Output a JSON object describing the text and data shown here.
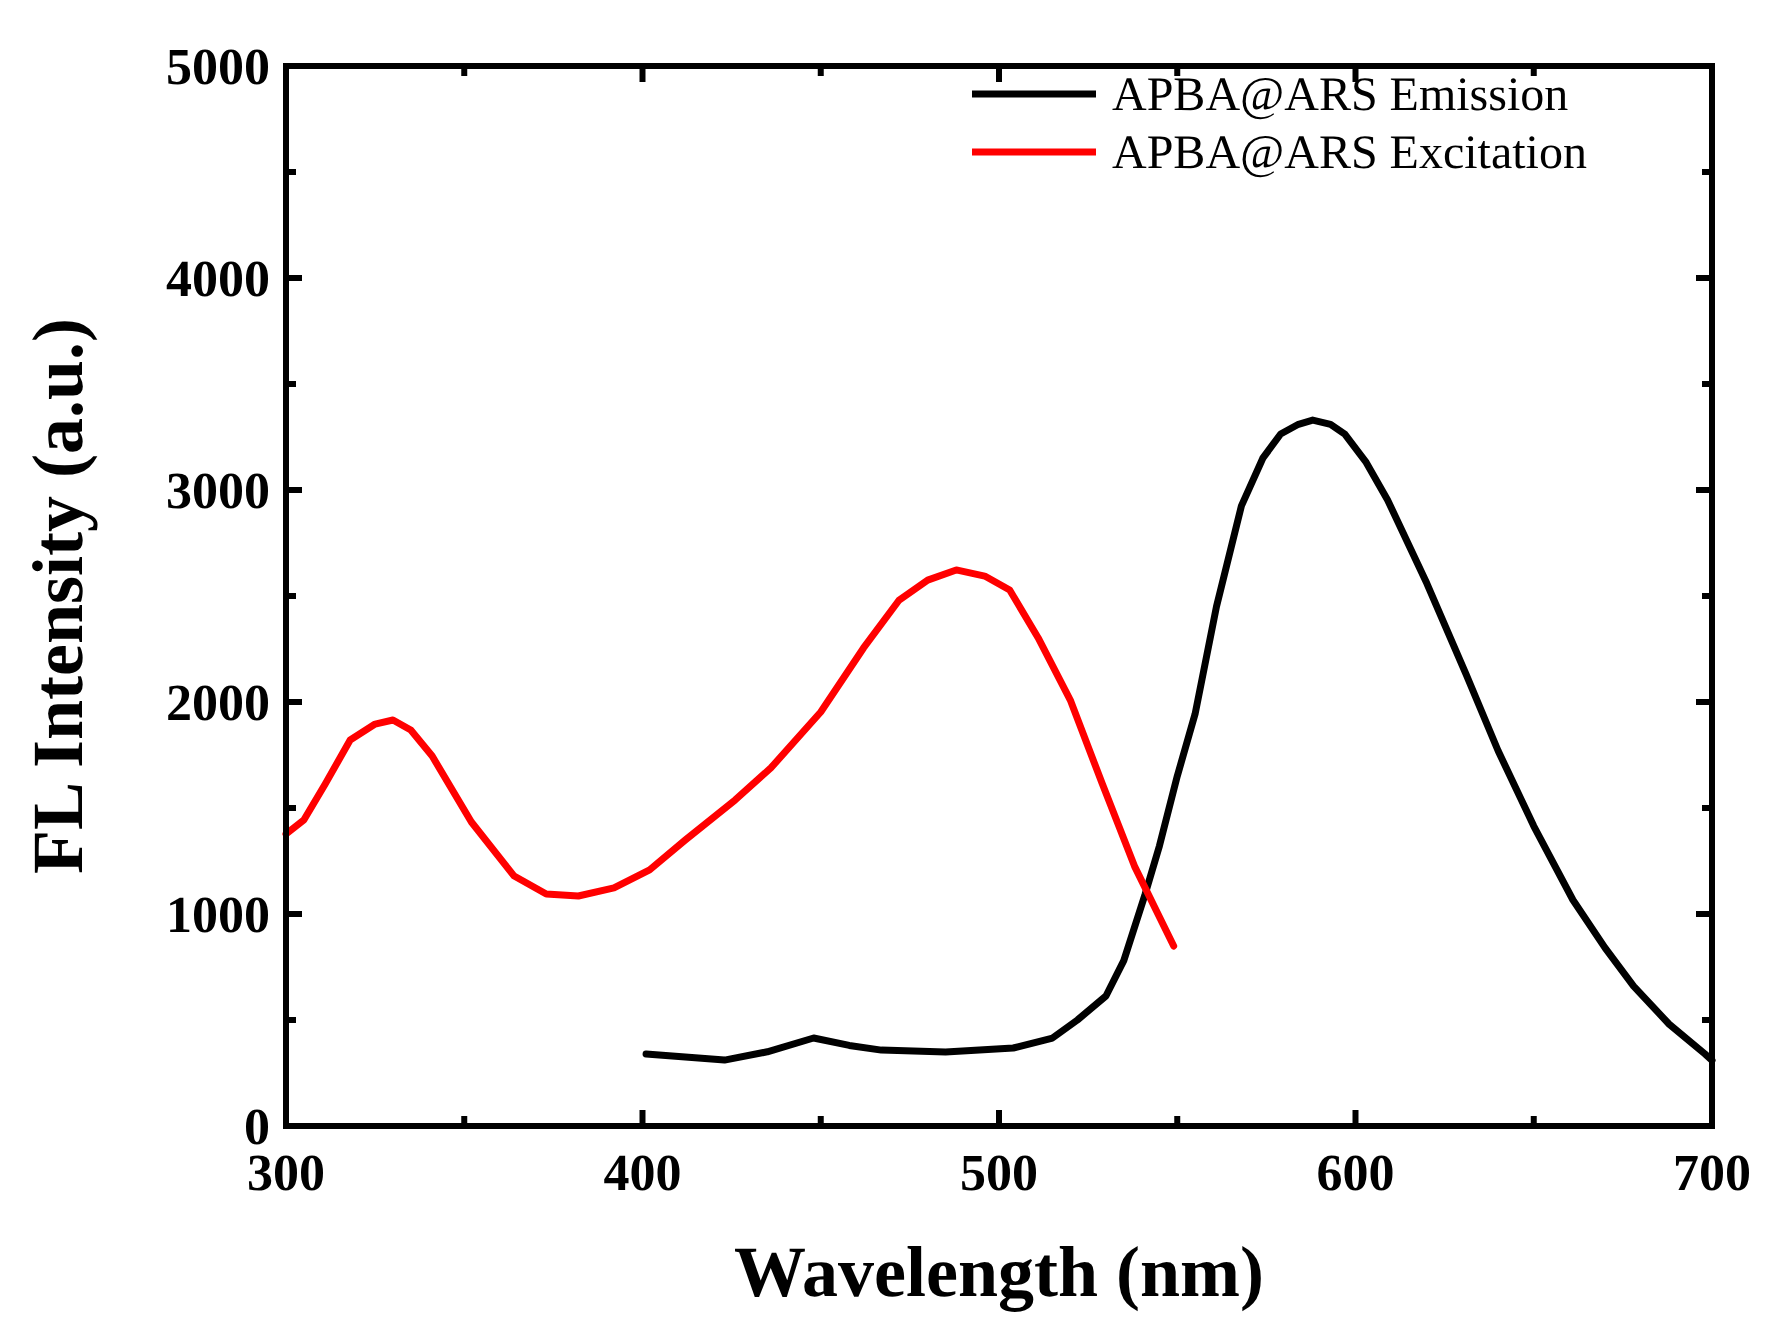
{
  "chart_data": {
    "type": "line",
    "xlabel": "Wavelength (nm)",
    "ylabel": "FL Intensity (a.u.)",
    "xlim": [
      300,
      700
    ],
    "ylim": [
      0,
      5000
    ],
    "xticks": [
      300,
      400,
      500,
      600,
      700
    ],
    "yticks": [
      0,
      1000,
      2000,
      3000,
      4000,
      5000
    ],
    "grid": false,
    "legend": "top right",
    "line_style": "solid",
    "series": [
      {
        "name": "APBA@ARS Emission",
        "color": "#000000",
        "x": [
          401,
          412,
          423,
          435,
          448,
          458,
          467,
          485,
          504,
          515,
          522,
          530,
          535,
          541,
          545,
          550,
          555,
          561,
          568,
          574,
          579,
          584,
          588,
          593,
          597,
          603,
          609,
          620,
          631,
          640,
          650,
          661,
          670,
          678,
          688,
          698,
          700
        ],
        "values": [
          340,
          325,
          311,
          350,
          415,
          380,
          358,
          349,
          368,
          415,
          500,
          613,
          780,
          1094,
          1321,
          1650,
          1943,
          2450,
          2925,
          3150,
          3264,
          3310,
          3330,
          3310,
          3264,
          3130,
          2953,
          2560,
          2132,
          1770,
          1415,
          1066,
          840,
          660,
          480,
          340,
          310
        ]
      },
      {
        "name": "APBA@ARS Excitation",
        "color": "#ff0000",
        "x": [
          300,
          305,
          311,
          318,
          325,
          330,
          335,
          341,
          352,
          364,
          373,
          382,
          392,
          402,
          412,
          426,
          436,
          450,
          462,
          472,
          480,
          488,
          496,
          503,
          511,
          520,
          529,
          538,
          549
        ],
        "values": [
          1377,
          1443,
          1613,
          1821,
          1896,
          1915,
          1868,
          1745,
          1434,
          1179,
          1094,
          1085,
          1123,
          1208,
          1349,
          1538,
          1689,
          1953,
          2255,
          2481,
          2575,
          2623,
          2594,
          2528,
          2302,
          2009,
          1613,
          1226,
          849
        ]
      }
    ]
  }
}
